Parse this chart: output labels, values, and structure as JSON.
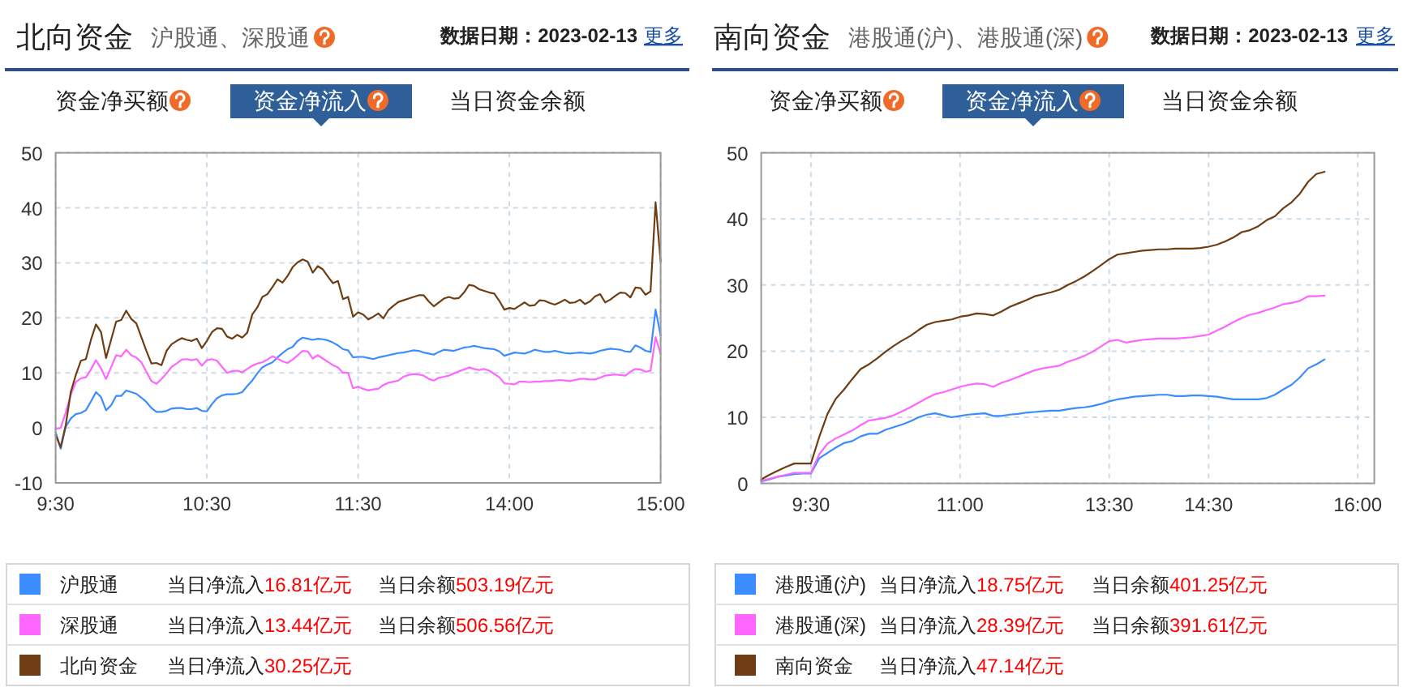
{
  "chart_data": [
    {
      "type": "line",
      "title": "北向资金",
      "subtitle": "沪股通、深股通",
      "annotations": [
        "数据日期：2023-02-13",
        "更多",
        "资金净买额",
        "资金净流入",
        "当日资金余额",
        "当日净流入",
        "16.81亿元",
        "当日余额",
        "503.19亿元",
        "当日净流入",
        "13.44亿元",
        "当日余额",
        "506.56亿元",
        "当日净流入",
        "30.25亿元"
      ],
      "categories": [
        "9:30",
        null,
        null,
        null,
        null,
        null,
        null,
        null,
        null,
        null,
        null,
        null,
        null,
        null,
        null,
        null,
        null,
        null,
        null,
        null,
        null,
        null,
        null,
        null,
        null,
        null,
        null,
        null,
        null,
        null,
        "10:30",
        null,
        null,
        null,
        null,
        null,
        null,
        null,
        null,
        null,
        null,
        null,
        null,
        null,
        null,
        null,
        null,
        null,
        null,
        null,
        null,
        null,
        null,
        null,
        null,
        null,
        null,
        null,
        null,
        null,
        "11:30",
        null,
        null,
        null,
        null,
        null,
        null,
        null,
        null,
        null,
        null,
        null,
        null,
        null,
        null,
        null,
        null,
        null,
        null,
        null,
        null,
        null,
        null,
        null,
        null,
        null,
        null,
        null,
        null,
        null,
        "14:00",
        null,
        null,
        null,
        null,
        null,
        null,
        null,
        null,
        null,
        null,
        null,
        null,
        null,
        null,
        null,
        null,
        null,
        null,
        null,
        null,
        null,
        null,
        null,
        null,
        null,
        null,
        null,
        null,
        null,
        "15:00"
      ],
      "ylim": [
        -10,
        50
      ],
      "yticks": [
        -10,
        0,
        10,
        20,
        30,
        40,
        50
      ],
      "grid": true,
      "legend": "bottom",
      "series": [
        {
          "name": "沪股通",
          "color": "#3a8cff",
          "values": [
            -0.8,
            -3.8,
            0.2,
            1.7,
            2.5,
            2.7,
            3.2,
            4.8,
            6.5,
            5.6,
            3.2,
            4.1,
            5.8,
            5.8,
            6.8,
            6.5,
            6.2,
            5.5,
            4.7,
            3.6,
            2.9,
            2.9,
            3.1,
            3.5,
            3.6,
            3.6,
            3.4,
            3.4,
            3.6,
            3.1,
            3.0,
            4.3,
            5.4,
            5.9,
            6.1,
            6.1,
            6.2,
            6.5,
            7.6,
            8.6,
            9.9,
            11.0,
            11.5,
            11.9,
            12.8,
            13.6,
            14.3,
            14.7,
            15.8,
            16.4,
            16.2,
            16.0,
            16.2,
            16.1,
            15.9,
            15.5,
            15.0,
            14.3,
            14.1,
            12.8,
            12.9,
            12.9,
            12.7,
            12.5,
            12.8,
            13.0,
            13.2,
            13.4,
            13.6,
            13.7,
            13.9,
            14.1,
            14.0,
            13.7,
            13.5,
            13.3,
            13.8,
            14.2,
            14.1,
            14.0,
            14.3,
            14.6,
            14.7,
            14.9,
            14.7,
            14.5,
            14.4,
            14.3,
            13.9,
            13.1,
            13.4,
            13.7,
            13.6,
            13.5,
            13.8,
            14.2,
            14.0,
            13.8,
            13.8,
            14.0,
            13.8,
            13.6,
            13.5,
            13.6,
            13.7,
            13.6,
            13.5,
            13.7,
            14.0,
            14.2,
            14.4,
            14.3,
            14.2,
            13.9,
            13.8,
            15.0,
            14.6,
            14.0,
            13.8,
            21.5,
            16.81
          ]
        },
        {
          "name": "深股通",
          "color": "#ff66ff",
          "values": [
            -0.2,
            0.0,
            2.8,
            6.0,
            8.3,
            9.0,
            9.2,
            10.6,
            12.3,
            10.8,
            8.9,
            11.0,
            13.2,
            13.0,
            14.2,
            13.2,
            12.8,
            11.9,
            10.2,
            8.5,
            8.0,
            8.9,
            9.9,
            11.1,
            11.7,
            12.4,
            12.5,
            12.3,
            12.5,
            11.3,
            12.3,
            12.5,
            12.2,
            11.1,
            10.0,
            10.3,
            10.4,
            10.1,
            10.7,
            11.3,
            11.7,
            11.9,
            12.4,
            13.0,
            12.6,
            12.1,
            11.8,
            12.4,
            13.2,
            14.0,
            13.9,
            12.6,
            13.2,
            12.6,
            12.0,
            11.4,
            11.0,
            10.0,
            10.0,
            7.2,
            7.5,
            7.1,
            6.8,
            7.0,
            7.1,
            7.8,
            8.2,
            8.4,
            8.6,
            9.3,
            9.6,
            9.8,
            9.7,
            9.5,
            8.9,
            8.6,
            9.1,
            9.3,
            9.5,
            9.9,
            10.3,
            10.6,
            11.0,
            10.7,
            10.5,
            10.7,
            10.4,
            9.8,
            9.2,
            8.1,
            8.0,
            7.9,
            8.4,
            8.4,
            8.3,
            8.4,
            8.4,
            8.5,
            8.5,
            8.6,
            8.7,
            8.6,
            8.5,
            8.7,
            8.9,
            8.9,
            8.8,
            8.8,
            9.1,
            9.5,
            9.6,
            9.7,
            9.6,
            9.5,
            10.2,
            10.7,
            10.6,
            10.2,
            10.4,
            16.5,
            13.44
          ]
        },
        {
          "name": "北向资金",
          "color": "#6e3d14",
          "values": [
            -1.3,
            -3.5,
            0.5,
            6.5,
            9.6,
            12.2,
            12.5,
            16.0,
            18.8,
            17.4,
            12.7,
            16.0,
            19.3,
            19.6,
            21.3,
            19.8,
            19.0,
            16.5,
            14.0,
            11.7,
            11.8,
            11.4,
            14.0,
            15.2,
            15.8,
            16.3,
            16.0,
            15.8,
            16.2,
            14.5,
            15.8,
            17.4,
            18.1,
            18.0,
            16.6,
            16.2,
            16.9,
            16.4,
            17.3,
            20.6,
            21.9,
            23.8,
            24.3,
            25.6,
            27.0,
            26.4,
            27.6,
            29.2,
            30.1,
            30.6,
            30.2,
            28.2,
            29.4,
            28.8,
            27.5,
            26.3,
            26.7,
            23.4,
            23.8,
            20.2,
            21.0,
            20.6,
            19.7,
            20.2,
            20.8,
            19.9,
            21.4,
            22.2,
            22.9,
            23.2,
            23.5,
            23.8,
            24.1,
            24.1,
            23.0,
            22.1,
            22.8,
            23.5,
            23.8,
            23.5,
            23.6,
            24.6,
            26.0,
            25.8,
            25.2,
            24.9,
            24.6,
            24.4,
            23.1,
            21.5,
            21.8,
            21.6,
            22.2,
            22.8,
            22.2,
            22.3,
            23.2,
            23.1,
            22.7,
            22.4,
            22.8,
            23.3,
            22.7,
            22.8,
            23.3,
            22.5,
            23.0,
            23.9,
            24.3,
            22.8,
            23.3,
            24.0,
            24.6,
            24.5,
            23.7,
            25.5,
            25.4,
            24.2,
            24.8,
            41.0,
            30.25
          ]
        }
      ]
    },
    {
      "type": "line",
      "title": "南向资金",
      "subtitle": "港股通(沪)、港股通(深)",
      "annotations": [
        "数据日期：2023-02-13",
        "更多",
        "资金净买额",
        "资金净流入",
        "当日资金余额",
        "当日净流入",
        "18.75亿元",
        "当日余额",
        "401.25亿元",
        "当日净流入",
        "28.39亿元",
        "当日余额",
        "391.61亿元",
        "当日净流入",
        "47.14亿元"
      ],
      "categories": [
        null,
        null,
        null,
        null,
        null,
        null,
        "9:30",
        null,
        null,
        null,
        null,
        null,
        null,
        null,
        null,
        null,
        null,
        null,
        null,
        null,
        null,
        null,
        null,
        null,
        "11:00",
        null,
        null,
        null,
        null,
        null,
        null,
        null,
        null,
        null,
        null,
        null,
        null,
        null,
        null,
        null,
        null,
        null,
        "13:30",
        null,
        null,
        null,
        null,
        null,
        null,
        null,
        null,
        null,
        null,
        null,
        "14:30",
        null,
        null,
        null,
        null,
        null,
        null,
        null,
        null,
        null,
        null,
        null,
        null,
        null,
        null,
        null,
        null,
        null,
        "16:00",
        null,
        null
      ],
      "ylim": [
        0,
        50
      ],
      "yticks": [
        0,
        10,
        20,
        30,
        40,
        50
      ],
      "grid": true,
      "legend": "bottom",
      "series": [
        {
          "name": "港股通(沪)",
          "color": "#3a8cff",
          "values": [
            0.3,
            0.6,
            1.0,
            1.2,
            1.4,
            1.5,
            1.5,
            3.8,
            4.6,
            5.4,
            6.1,
            6.4,
            7.1,
            7.5,
            7.5,
            8.1,
            8.5,
            8.9,
            9.4,
            10.0,
            10.4,
            10.6,
            10.3,
            10.0,
            10.2,
            10.4,
            10.5,
            10.6,
            10.2,
            10.2,
            10.4,
            10.5,
            10.7,
            10.8,
            10.9,
            11.0,
            11.0,
            11.2,
            11.4,
            11.5,
            11.7,
            12.0,
            12.4,
            12.7,
            12.9,
            13.1,
            13.2,
            13.3,
            13.4,
            13.4,
            13.2,
            13.2,
            13.3,
            13.3,
            13.2,
            13.1,
            12.9,
            12.7,
            12.7,
            12.7,
            12.7,
            12.9,
            13.4,
            14.2,
            14.9,
            16.0,
            17.4,
            18.0,
            18.75,
            null,
            null,
            null,
            null,
            null,
            null
          ]
        },
        {
          "name": "港股通(深)",
          "color": "#ff66ff",
          "values": [
            0.4,
            0.7,
            1.0,
            1.3,
            1.6,
            1.6,
            1.6,
            4.4,
            6.0,
            6.8,
            7.4,
            8.0,
            8.8,
            9.5,
            9.7,
            9.9,
            10.3,
            10.9,
            11.5,
            12.2,
            12.9,
            13.5,
            13.8,
            14.2,
            14.6,
            14.9,
            15.1,
            15.0,
            14.6,
            15.2,
            15.6,
            16.1,
            16.6,
            17.1,
            17.4,
            17.6,
            17.8,
            18.4,
            18.8,
            19.3,
            19.9,
            20.7,
            21.5,
            21.7,
            21.3,
            21.5,
            21.7,
            21.8,
            21.9,
            21.9,
            21.9,
            22.0,
            22.1,
            22.3,
            22.5,
            23.1,
            23.7,
            24.4,
            25.0,
            25.5,
            25.8,
            26.2,
            26.6,
            27.1,
            27.3,
            27.6,
            28.3,
            28.3,
            28.39,
            null,
            null,
            null,
            null,
            null,
            null
          ]
        },
        {
          "name": "南向资金",
          "color": "#6e3d14",
          "values": [
            0.6,
            1.3,
            1.9,
            2.5,
            3.0,
            3.0,
            3.0,
            7.0,
            10.5,
            12.8,
            14.2,
            15.8,
            17.3,
            18.0,
            18.9,
            19.9,
            20.8,
            21.6,
            22.3,
            23.2,
            24.0,
            24.4,
            24.6,
            24.8,
            25.2,
            25.4,
            25.7,
            25.6,
            25.4,
            26.0,
            26.7,
            27.2,
            27.7,
            28.3,
            28.6,
            28.9,
            29.3,
            30.0,
            30.6,
            31.3,
            32.1,
            33.0,
            33.9,
            34.6,
            34.8,
            35.0,
            35.2,
            35.3,
            35.4,
            35.4,
            35.5,
            35.5,
            35.5,
            35.6,
            35.8,
            36.1,
            36.6,
            37.2,
            38.0,
            38.3,
            38.9,
            39.8,
            40.4,
            41.6,
            42.5,
            43.8,
            45.6,
            46.8,
            47.14,
            null,
            null,
            null,
            null,
            null,
            null
          ]
        }
      ]
    }
  ]
}
